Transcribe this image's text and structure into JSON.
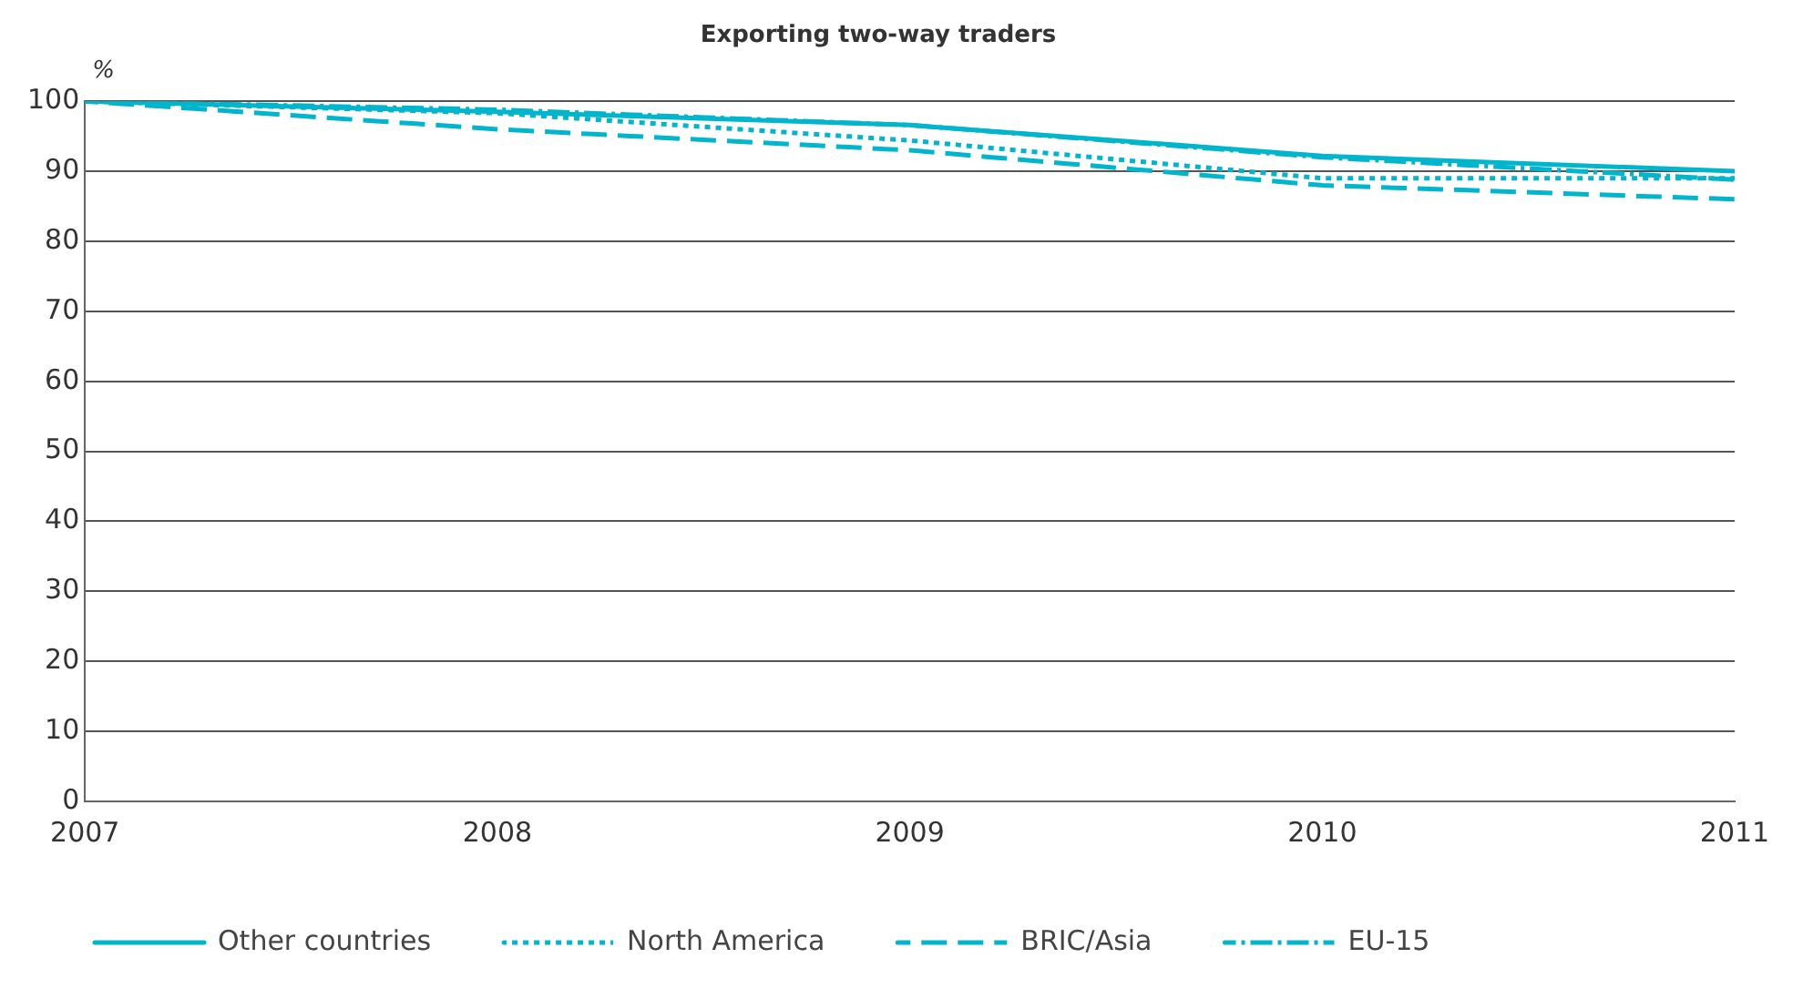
{
  "chart_data": {
    "type": "line",
    "title": "Exporting two-way traders",
    "ylabel": "%",
    "x": [
      2007,
      2008,
      2009,
      2010,
      2011
    ],
    "xlim": [
      2007,
      2011
    ],
    "xticks": [
      2007,
      2008,
      2009,
      2010,
      2011
    ],
    "ylim": [
      0,
      100
    ],
    "yticks": [
      0,
      10,
      20,
      30,
      40,
      50,
      60,
      70,
      80,
      90,
      100
    ],
    "grid": "y",
    "legend": "bottom",
    "series": [
      {
        "name": "Other countries",
        "color": "#00b5cc",
        "line_style": "solid",
        "values": [
          100,
          98.5,
          96.6,
          92.2,
          90
        ]
      },
      {
        "name": "North America",
        "color": "#00b5cc",
        "line_style": "dotted",
        "values": [
          100,
          98.3,
          94.4,
          89,
          89
        ]
      },
      {
        "name": "BRIC/Asia",
        "color": "#00b5cc",
        "line_style": "dashed",
        "values": [
          100,
          96,
          93,
          88,
          86
        ]
      },
      {
        "name": "EU-15",
        "color": "#00b5cc",
        "line_style": "dashdot",
        "values": [
          100,
          98.8,
          96.6,
          92,
          88.8
        ]
      }
    ]
  }
}
